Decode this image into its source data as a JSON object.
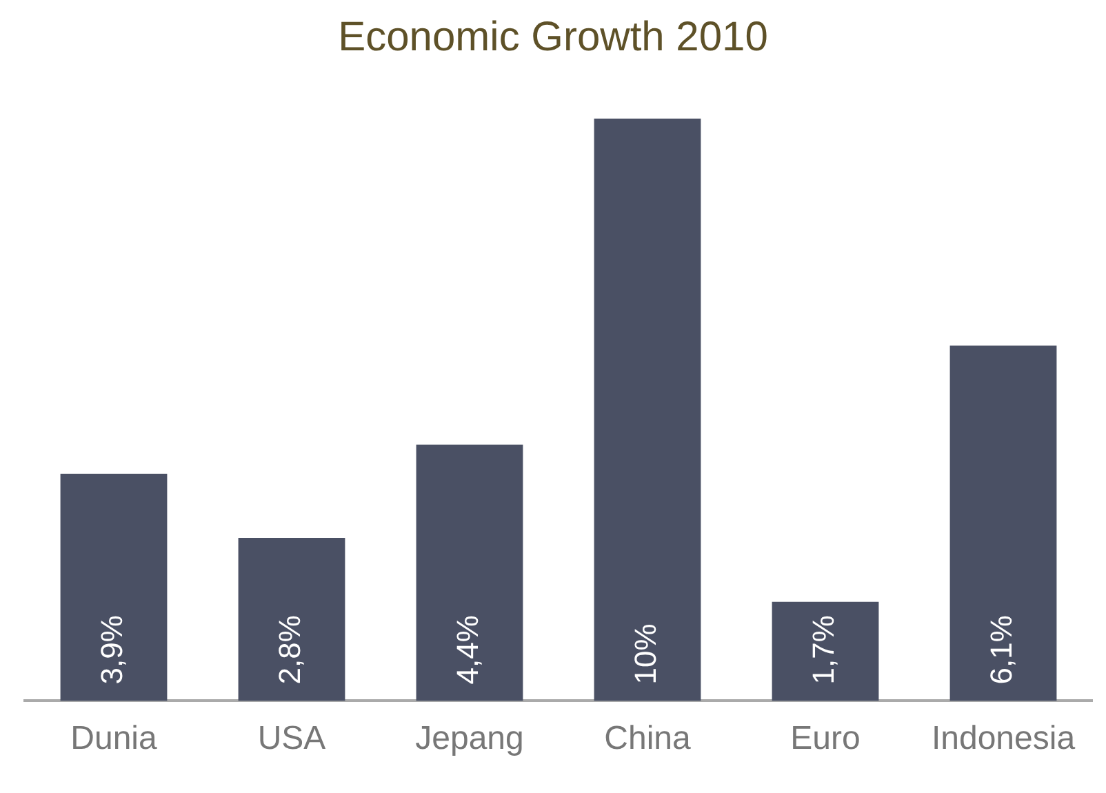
{
  "chart_data": {
    "type": "bar",
    "title": "Economic Growth 2010",
    "categories": [
      "Dunia",
      "USA",
      "Jepang",
      "China",
      "Euro",
      "Indonesia"
    ],
    "values": [
      3.9,
      2.8,
      4.4,
      10,
      1.7,
      6.1
    ],
    "value_labels": [
      "3,9%",
      "2,8%",
      "4,4%",
      "10%",
      "1,7%",
      "6,1%"
    ],
    "color": "#4a5064",
    "grid": false,
    "legend": false
  }
}
